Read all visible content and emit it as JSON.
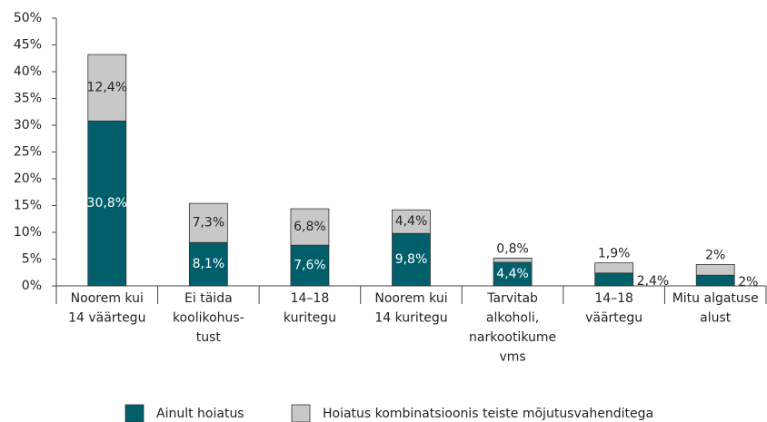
{
  "chart_data": {
    "type": "stacked_bar",
    "categories": [
      [
        "Noorem kui",
        "14 väärtegu"
      ],
      [
        "Ei täida",
        "koolikohus-",
        "tust"
      ],
      [
        "14–18",
        "kuritegu"
      ],
      [
        "Noorem kui",
        "14 kuritegu"
      ],
      [
        "Tarvitab",
        "alkoholi,",
        "narkootikume",
        "vms"
      ],
      [
        "14–18",
        "väärtegu"
      ],
      [
        "Mitu algatuse",
        "alust"
      ]
    ],
    "series": [
      {
        "name": "Ainult hoiatus",
        "color": "#005f6b",
        "values": [
          30.8,
          8.1,
          7.6,
          9.8,
          4.4,
          2.4,
          2
        ],
        "value_labels": [
          "30,8%",
          "8,1%",
          "7,6%",
          "9,8%",
          "4,4%",
          "2,4%",
          "2%"
        ]
      },
      {
        "name": "Hoiatus kombinatsioonis teiste mõjutusvahenditega",
        "color": "#c8c8c8",
        "values": [
          12.4,
          7.3,
          6.8,
          4.4,
          0.8,
          1.9,
          2
        ],
        "value_labels": [
          "12,4%",
          "7,3%",
          "6,8%",
          "4,4%",
          "0,8%",
          "1,9%",
          "2%"
        ]
      }
    ],
    "ylim": [
      0,
      50
    ],
    "yticks": [
      {
        "value": 0,
        "label": "0%"
      },
      {
        "value": 5,
        "label": "5%"
      },
      {
        "value": 10,
        "label": "10%"
      },
      {
        "value": 15,
        "label": "15%"
      },
      {
        "value": 20,
        "label": "20%"
      },
      {
        "value": 25,
        "label": "25%"
      },
      {
        "value": 30,
        "label": "30%"
      },
      {
        "value": 35,
        "label": "35%"
      },
      {
        "value": 40,
        "label": "40%"
      },
      {
        "value": 45,
        "label": "45%"
      },
      {
        "value": 50,
        "label": "50%"
      }
    ],
    "legend": "bottom"
  }
}
